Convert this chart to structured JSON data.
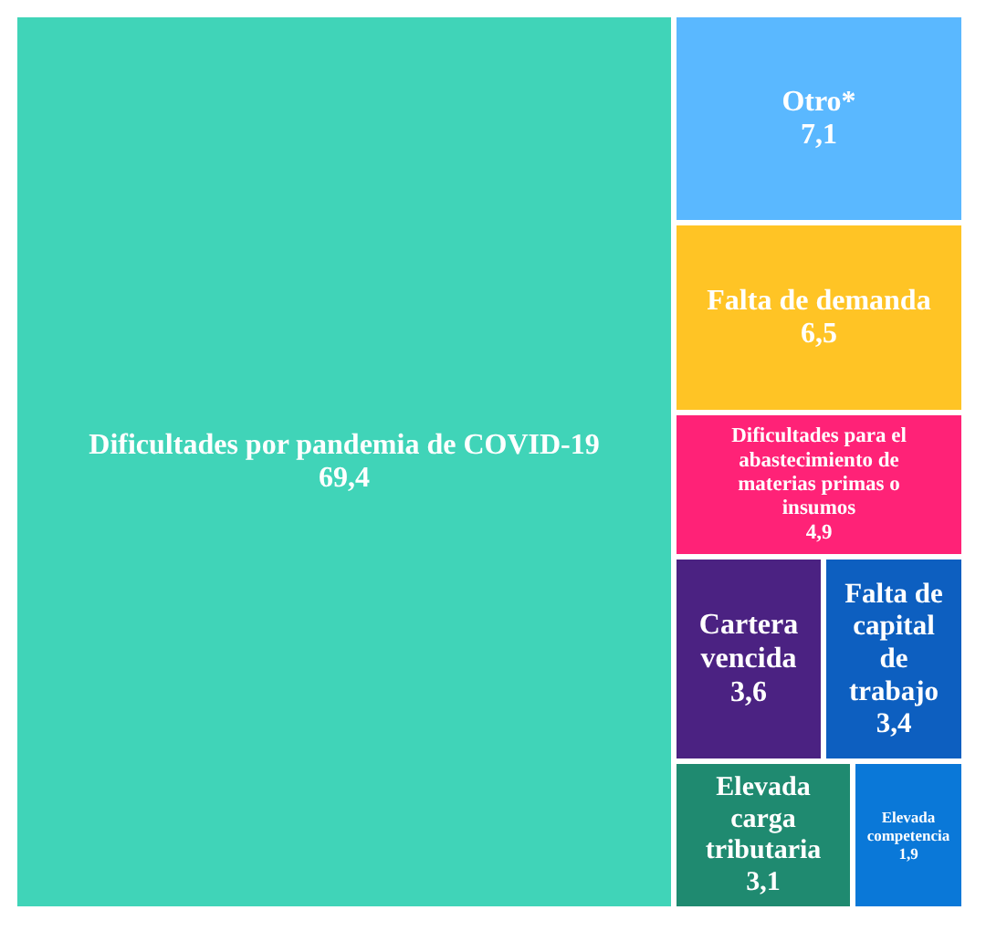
{
  "chart_data": {
    "type": "other",
    "categories": [
      "Dificultades por pandemia de COVID-19",
      "Otro*",
      "Falta de demanda",
      "Dificultades para el abastecimiento de materias primas o insumos",
      "Cartera vencida",
      "Falta de capital de trabajo",
      "Elevada carga tributaria",
      "Elevada competencia"
    ],
    "values": [
      69.4,
      7.1,
      6.5,
      4.9,
      3.6,
      3.4,
      3.1,
      1.9
    ],
    "value_labels": [
      "69,4",
      "7,1",
      "6,5",
      "4,9",
      "3,6",
      "3,4",
      "3,1",
      "1,9"
    ],
    "colors": [
      "#40d4b8",
      "#5ab8ff",
      "#ffc425",
      "#ff2277",
      "#4b2282",
      "#0d5fc0",
      "#1f8a70",
      "#0a78d8"
    ]
  }
}
